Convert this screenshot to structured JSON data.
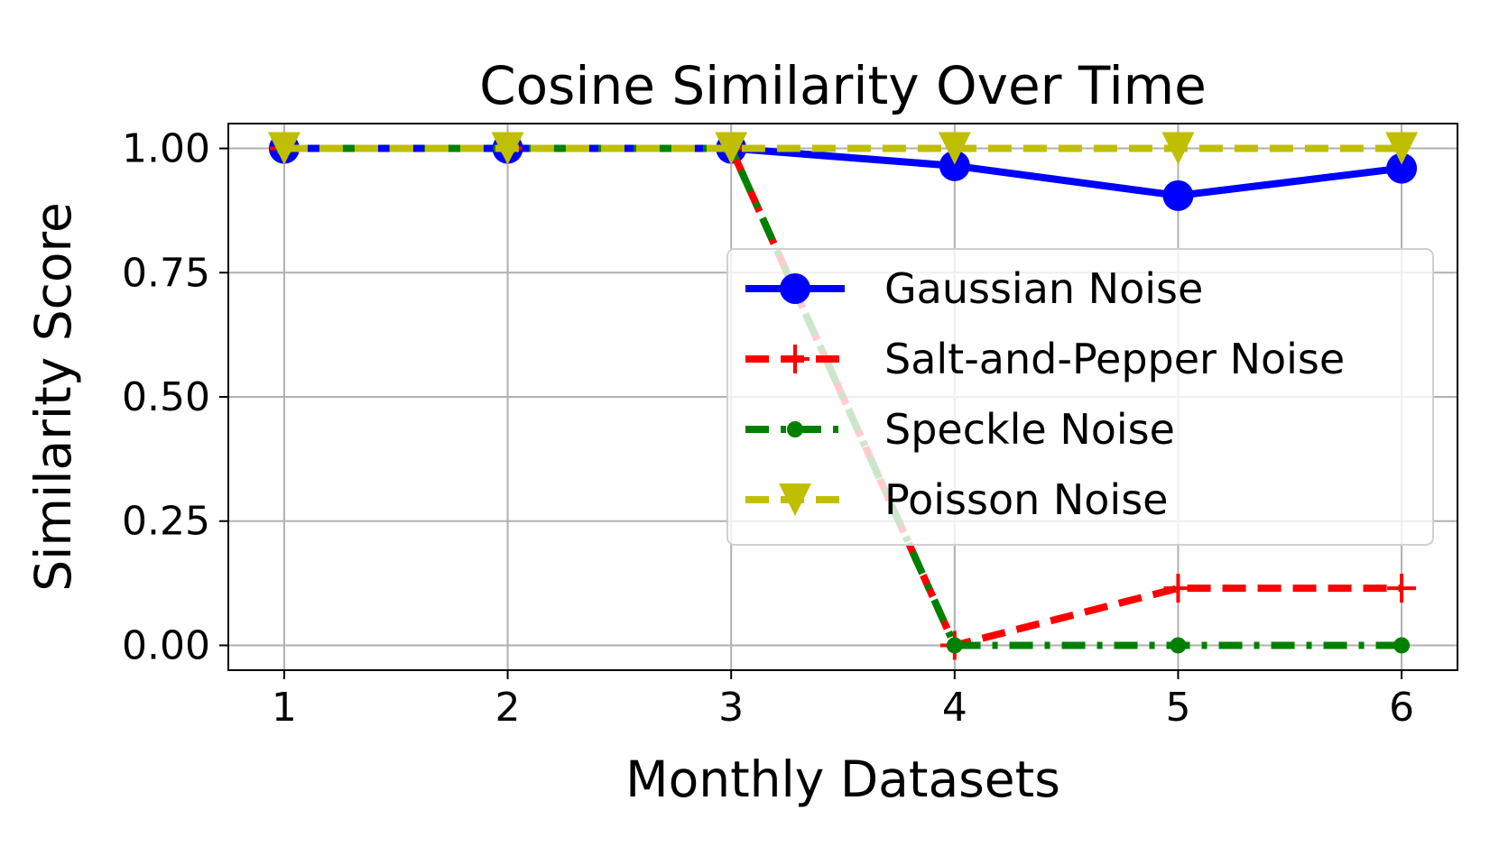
{
  "chart_data": {
    "type": "line",
    "title": "Cosine Similarity Over Time",
    "xlabel": "Monthly Datasets",
    "ylabel": "Similarity Score",
    "x": [
      1,
      2,
      3,
      4,
      5,
      6
    ],
    "xlim": [
      0.75,
      6.25
    ],
    "ylim": [
      -0.05,
      1.05
    ],
    "yticks": [
      "0.00",
      "0.25",
      "0.50",
      "0.75",
      "1.00"
    ],
    "xticks": [
      "1",
      "2",
      "3",
      "4",
      "5",
      "6"
    ],
    "grid": true,
    "legend_position": "center-right",
    "series": [
      {
        "name": "Gaussian Noise",
        "values": [
          1.0,
          1.0,
          1.0,
          0.965,
          0.905,
          0.96
        ],
        "color": "#0000ff",
        "line": "solid",
        "marker": "circle"
      },
      {
        "name": "Salt-and-Pepper Noise",
        "values": [
          1.0,
          1.0,
          1.0,
          0.0,
          0.115,
          0.115
        ],
        "color": "#ff0000",
        "line": "dashed",
        "marker": "plus"
      },
      {
        "name": "Speckle Noise",
        "values": [
          1.0,
          1.0,
          1.0,
          0.0,
          0.0,
          0.0
        ],
        "color": "#008000",
        "line": "dashdot",
        "marker": "dot"
      },
      {
        "name": "Poisson Noise",
        "values": [
          1.0,
          1.0,
          1.0,
          1.0,
          1.0,
          1.0
        ],
        "color": "#bfbf00",
        "line": "dashed",
        "marker": "triangle-down"
      }
    ]
  }
}
